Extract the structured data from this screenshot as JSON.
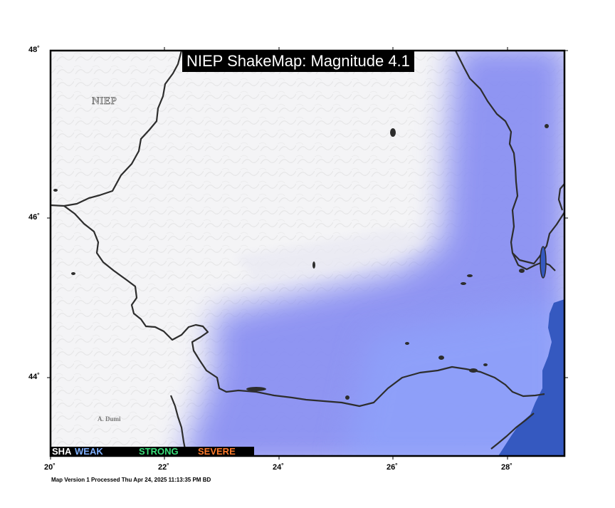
{
  "title": "NIEP ShakeMap: Magnitude 4.1",
  "watermark": "NIEP",
  "author_credit": "A. Dumi",
  "footer": "Map Version 1 Processed Thu Apr 24, 2025 11:13:35 PM BD",
  "axes": {
    "lon_ticks": [
      "20˚",
      "22˚",
      "24˚",
      "26˚",
      "28˚"
    ],
    "lat_ticks": [
      "48˚",
      "46˚",
      "44˚"
    ],
    "lon_range": [
      20,
      29
    ],
    "lat_range": [
      43,
      48
    ]
  },
  "intensity_scale": {
    "segments": [
      {
        "label": "SHAKING",
        "shown": "SHA",
        "color": "#ffffff"
      },
      {
        "label": "WEAK",
        "shown": "WEAK",
        "color": "#7fb0ff"
      },
      {
        "label": "STRONG",
        "shown": "STRONG",
        "color": "#39e07a"
      },
      {
        "label": "SEVERE",
        "shown": "SEVERE",
        "color": "#ff7a2a"
      }
    ],
    "gradient": [
      "#ffffff",
      "#bfc4ff",
      "#8fa0ff",
      "#7fd4ff",
      "#7affc0",
      "#c6ff60",
      "#ffe14a",
      "#ff9a2e",
      "#ff4a1a",
      "#c00000",
      "#800000"
    ]
  },
  "colors": {
    "weak_shaking": "#8a90f2",
    "sea": "#3559c0",
    "terrain": "#f4f4f6",
    "border": "#2d2d2d"
  }
}
